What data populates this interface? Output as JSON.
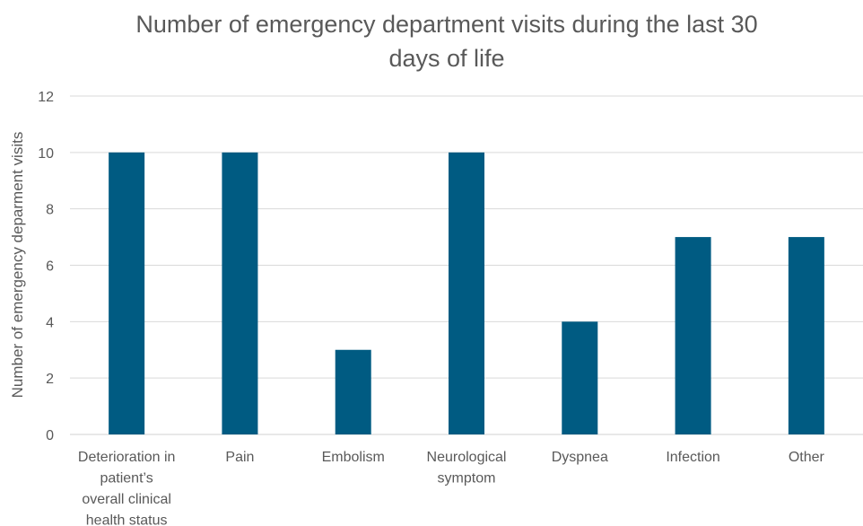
{
  "chart_data": {
    "type": "bar",
    "title_lines": [
      "Number of emergency department visits during the last 30",
      "days of life"
    ],
    "ylabel": "Number of emergency deparment visits",
    "xlabel": "",
    "ylim": [
      0,
      12
    ],
    "yticks": [
      0,
      2,
      4,
      6,
      8,
      10,
      12
    ],
    "grid": true,
    "bar_color": "#005b82",
    "categories": [
      [
        "Deterioration in",
        "patient’s",
        "overall clinical",
        "health status"
      ],
      [
        "Pain"
      ],
      [
        "Embolism"
      ],
      [
        "Neurological",
        "symptom"
      ],
      [
        "Dyspnea"
      ],
      [
        "Infection"
      ],
      [
        "Other"
      ]
    ],
    "values": [
      10,
      10,
      3,
      10,
      4,
      7,
      7
    ]
  }
}
